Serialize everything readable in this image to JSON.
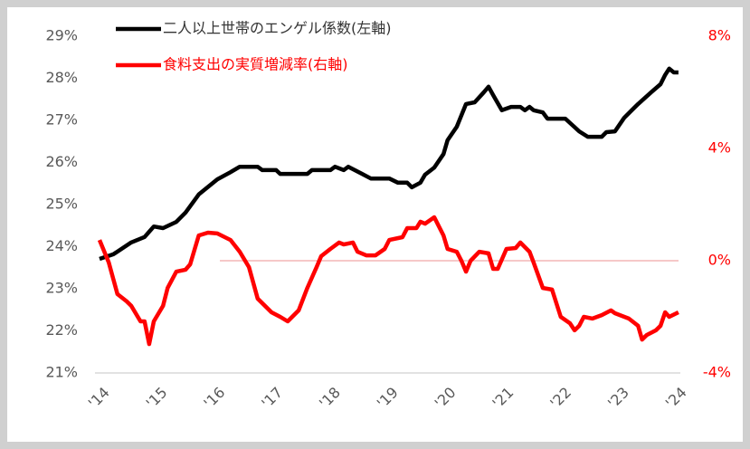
{
  "chart_data": {
    "type": "line",
    "xlim": [
      2014,
      2024
    ],
    "xticks": [
      {
        "value": 2014,
        "label": "'14"
      },
      {
        "value": 2015,
        "label": "'15"
      },
      {
        "value": 2016,
        "label": "'16"
      },
      {
        "value": 2017,
        "label": "'17"
      },
      {
        "value": 2018,
        "label": "'18"
      },
      {
        "value": 2019,
        "label": "'19"
      },
      {
        "value": 2020,
        "label": "'20"
      },
      {
        "value": 2021,
        "label": "'21"
      },
      {
        "value": 2022,
        "label": "'22"
      },
      {
        "value": 2023,
        "label": "'23"
      },
      {
        "value": 2024,
        "label": "'24"
      }
    ],
    "ylim": [
      21,
      29
    ],
    "yticks": [
      {
        "value": 21,
        "label": "21%"
      },
      {
        "value": 22,
        "label": "22%"
      },
      {
        "value": 23,
        "label": "23%"
      },
      {
        "value": 24,
        "label": "24%"
      },
      {
        "value": 25,
        "label": "25%"
      },
      {
        "value": 26,
        "label": "26%"
      },
      {
        "value": 27,
        "label": "27%"
      },
      {
        "value": 28,
        "label": "28%"
      },
      {
        "value": 29,
        "label": "29%"
      }
    ],
    "y2lim": [
      -4,
      8
    ],
    "y2ticks": [
      {
        "value": -4,
        "label": "-4%"
      },
      {
        "value": 0,
        "label": "0%"
      },
      {
        "value": 4,
        "label": "4%"
      },
      {
        "value": 8,
        "label": "8%"
      }
    ],
    "series": [
      {
        "name": "二人以上世帯のエンゲル係数(左軸)",
        "color": "#000000",
        "axis": "y",
        "x": [
          2014.0,
          2014.24,
          2014.55,
          2014.78,
          2014.94,
          2015.1,
          2015.33,
          2015.49,
          2015.72,
          2016.04,
          2016.27,
          2016.43,
          2016.74,
          2016.82,
          2017.06,
          2017.13,
          2017.6,
          2017.68,
          2018.0,
          2018.08,
          2018.23,
          2018.31,
          2018.55,
          2018.7,
          2019.02,
          2019.17,
          2019.33,
          2019.41,
          2019.56,
          2019.64,
          2019.8,
          2019.96,
          2020.03,
          2020.19,
          2020.35,
          2020.5,
          2020.66,
          2020.74,
          2020.82,
          2020.97,
          2021.13,
          2021.29,
          2021.37,
          2021.45,
          2021.52,
          2021.68,
          2021.76,
          2022.07,
          2022.31,
          2022.46,
          2022.7,
          2022.78,
          2022.93,
          2023.09,
          2023.25,
          2023.33,
          2023.56,
          2023.72,
          2023.8,
          2023.87,
          2023.95,
          2024.03
        ],
        "values": [
          23.71,
          23.82,
          24.1,
          24.23,
          24.48,
          24.44,
          24.59,
          24.81,
          25.24,
          25.6,
          25.77,
          25.9,
          25.9,
          25.82,
          25.82,
          25.73,
          25.73,
          25.82,
          25.82,
          25.9,
          25.82,
          25.9,
          25.73,
          25.62,
          25.62,
          25.52,
          25.52,
          25.41,
          25.52,
          25.71,
          25.88,
          26.2,
          26.53,
          26.85,
          27.39,
          27.43,
          27.67,
          27.8,
          27.6,
          27.24,
          27.32,
          27.32,
          27.24,
          27.32,
          27.24,
          27.19,
          27.04,
          27.04,
          26.74,
          26.61,
          26.61,
          26.72,
          26.74,
          27.06,
          27.28,
          27.39,
          27.67,
          27.86,
          28.08,
          28.23,
          28.14,
          28.14
        ]
      },
      {
        "name": "食料支出の実質増減率(右軸)",
        "color": "#ff0000",
        "axis": "y2",
        "x": [
          2014.0,
          2014.16,
          2014.31,
          2014.47,
          2014.55,
          2014.71,
          2014.78,
          2014.86,
          2014.94,
          2015.1,
          2015.18,
          2015.33,
          2015.49,
          2015.57,
          2015.72,
          2015.88,
          2016.04,
          2016.27,
          2016.43,
          2016.59,
          2016.74,
          2016.98,
          2017.13,
          2017.26,
          2017.45,
          2017.6,
          2017.76,
          2017.84,
          2018.0,
          2018.15,
          2018.23,
          2018.39,
          2018.47,
          2018.62,
          2018.78,
          2018.94,
          2019.02,
          2019.25,
          2019.33,
          2019.49,
          2019.56,
          2019.64,
          2019.8,
          2019.96,
          2020.03,
          2020.19,
          2020.27,
          2020.35,
          2020.43,
          2020.58,
          2020.74,
          2020.82,
          2020.9,
          2021.05,
          2021.21,
          2021.29,
          2021.45,
          2021.52,
          2021.68,
          2021.84,
          2021.99,
          2022.15,
          2022.23,
          2022.31,
          2022.39,
          2022.54,
          2022.7,
          2022.86,
          2022.93,
          2023.17,
          2023.33,
          2023.4,
          2023.48,
          2023.64,
          2023.72,
          2023.8,
          2023.87,
          2024.03
        ],
        "values": [
          0.74,
          -0.06,
          -1.19,
          -1.45,
          -1.61,
          -2.16,
          -2.16,
          -2.97,
          -2.16,
          -1.61,
          -0.97,
          -0.39,
          -0.32,
          -0.13,
          0.9,
          1.0,
          0.97,
          0.74,
          0.32,
          -0.23,
          -1.35,
          -1.84,
          -2.0,
          -2.16,
          -1.77,
          -0.97,
          -0.23,
          0.16,
          0.42,
          0.65,
          0.58,
          0.65,
          0.32,
          0.19,
          0.19,
          0.42,
          0.74,
          0.84,
          1.16,
          1.16,
          1.39,
          1.32,
          1.55,
          0.9,
          0.42,
          0.32,
          0.0,
          -0.39,
          0.0,
          0.32,
          0.26,
          -0.29,
          -0.29,
          0.42,
          0.45,
          0.65,
          0.32,
          -0.06,
          -0.97,
          -1.03,
          -2.0,
          -2.23,
          -2.48,
          -2.32,
          -2.0,
          -2.06,
          -1.94,
          -1.77,
          -1.87,
          -2.06,
          -2.32,
          -2.81,
          -2.65,
          -2.48,
          -2.32,
          -1.84,
          -2.0,
          -1.84
        ]
      }
    ]
  }
}
